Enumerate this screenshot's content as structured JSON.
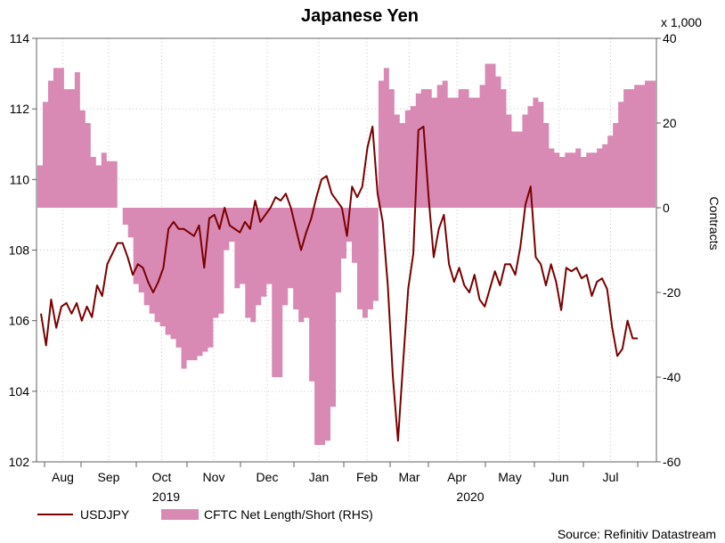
{
  "chart_data": {
    "type": "line",
    "title": "Japanese Yen",
    "y_left": {
      "ylim": [
        102,
        114
      ],
      "ticks": [
        102,
        104,
        106,
        108,
        110,
        112,
        114
      ]
    },
    "y_right": {
      "label": "Contracts",
      "unit_label": "x 1,000",
      "ylim": [
        -60,
        40
      ],
      "ticks": [
        -60,
        -40,
        -20,
        0,
        20,
        40
      ]
    },
    "x_axis": {
      "months": [
        "Aug",
        "Sep",
        "Oct",
        "Nov",
        "Dec",
        "Jan",
        "Feb",
        "Mar",
        "Apr",
        "May",
        "Jun",
        "Jul"
      ],
      "years": [
        "2019",
        "2020"
      ]
    },
    "legend": {
      "placement": "bottom-left",
      "items": [
        "USDJPY",
        "CFTC Net Length/Short (RHS)"
      ]
    },
    "source": "Source: Refinitiv Datastream",
    "colors": {
      "line": "#7a0000",
      "bars": "#d88ab5",
      "grid": "#c8c8c8"
    },
    "series": [
      {
        "name": "USDJPY",
        "axis": "left",
        "kind": "line",
        "values": [
          106.2,
          105.3,
          106.6,
          105.8,
          106.4,
          106.5,
          106.2,
          106.5,
          106.0,
          106.4,
          106.1,
          107.0,
          106.7,
          107.6,
          107.9,
          108.2,
          108.2,
          107.8,
          107.3,
          107.6,
          107.5,
          107.1,
          106.8,
          107.1,
          107.5,
          108.6,
          108.8,
          108.6,
          108.6,
          108.5,
          108.4,
          108.7,
          107.5,
          108.9,
          109.0,
          108.6,
          109.2,
          108.7,
          108.6,
          108.5,
          108.8,
          108.6,
          109.4,
          108.8,
          109.0,
          109.2,
          109.5,
          109.4,
          109.6,
          109.2,
          108.6,
          108.0,
          108.5,
          108.9,
          109.5,
          110.0,
          110.1,
          109.6,
          109.4,
          109.2,
          108.4,
          109.8,
          109.5,
          109.8,
          110.9,
          111.5,
          109.6,
          108.8,
          107.0,
          104.4,
          102.6,
          104.8,
          106.9,
          107.9,
          111.4,
          111.5,
          109.5,
          107.8,
          108.6,
          109.0,
          107.6,
          107.1,
          107.5,
          107.0,
          106.8,
          107.3,
          106.6,
          106.4,
          106.9,
          107.4,
          107.0,
          107.6,
          107.6,
          107.3,
          108.1,
          109.3,
          109.8,
          107.8,
          107.6,
          107.0,
          107.6,
          107.1,
          106.3,
          107.5,
          107.4,
          107.5,
          107.2,
          107.3,
          106.7,
          107.1,
          107.2,
          106.9,
          105.8,
          105.0,
          105.2,
          106.0,
          105.5,
          105.5
        ]
      },
      {
        "name": "CFTC Net Length/Short (RHS)",
        "axis": "right",
        "kind": "area",
        "values": [
          10,
          25,
          30,
          33,
          33,
          28,
          28,
          32,
          23,
          20,
          12,
          10,
          13,
          11,
          11,
          0,
          -4,
          -7,
          -18,
          -20,
          -23,
          -25,
          -27,
          -28,
          -30,
          -31,
          -33,
          -38,
          -36,
          -36,
          -35,
          -34,
          -33,
          -26,
          -25,
          -10,
          -8,
          -19,
          -18,
          -26,
          -27,
          -23,
          -21,
          -18,
          -40,
          -40,
          -23,
          -19,
          -24,
          -27,
          -26,
          -41,
          -56,
          -56,
          -55,
          -47,
          -20,
          -12,
          -8,
          -13,
          -24,
          -26,
          -24,
          -22,
          30,
          33,
          28,
          22,
          20,
          23,
          24,
          27,
          28,
          28,
          26,
          29,
          30,
          26,
          26,
          28,
          28,
          26,
          26,
          29,
          34,
          34,
          31,
          28,
          22,
          18,
          18,
          22,
          24,
          26,
          25,
          20,
          14,
          13,
          12,
          13,
          13,
          14,
          12,
          13,
          13,
          14,
          15,
          17,
          20,
          25,
          28,
          28,
          29,
          29,
          30,
          30
        ]
      }
    ]
  }
}
